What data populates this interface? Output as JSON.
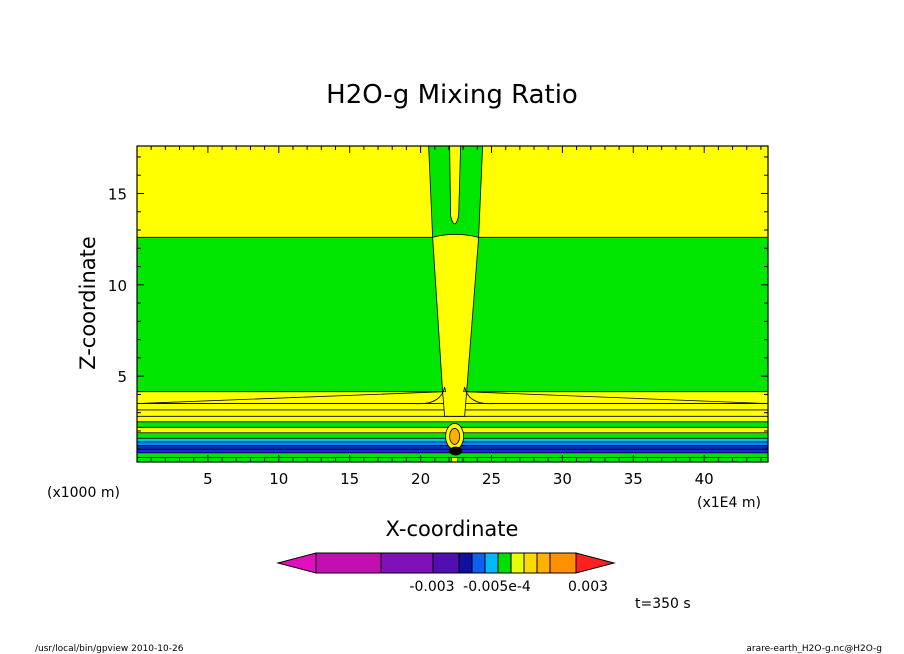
{
  "chart_data": {
    "type": "heatmap",
    "title": "H2O-g Mixing Ratio",
    "xlabel": "X-coordinate",
    "ylabel": "Z-coordinate",
    "x_unit_note": "(x1E4 m)",
    "y_unit_note": "(x1000 m)",
    "xlim": [
      0,
      44.5
    ],
    "ylim": [
      0.3,
      17.6
    ],
    "x_ticks": [
      "5",
      "10",
      "15",
      "20",
      "25",
      "30",
      "35",
      "40"
    ],
    "x_tick_values": [
      5,
      10,
      15,
      20,
      25,
      30,
      35,
      40
    ],
    "y_ticks": [
      "5",
      "10",
      "15"
    ],
    "y_tick_values": [
      5,
      10,
      15
    ],
    "plume_center_x": 22.4,
    "upper_band_bottom_z": 12.6,
    "layers": [
      {
        "z0": 0.3,
        "z1": 0.55,
        "color": "#00e600"
      },
      {
        "z0": 0.55,
        "z1": 0.8,
        "color": "#00e600"
      },
      {
        "z0": 0.8,
        "z1": 1.0,
        "color": "#2222ee"
      },
      {
        "z0": 1.0,
        "z1": 1.2,
        "color": "#0033aa"
      },
      {
        "z0": 1.2,
        "z1": 1.4,
        "color": "#0088ff"
      },
      {
        "z0": 1.4,
        "z1": 1.6,
        "color": "#00cccc"
      },
      {
        "z0": 1.6,
        "z1": 1.9,
        "color": "#00e600"
      },
      {
        "z0": 1.9,
        "z1": 2.2,
        "color": "#ffff00"
      },
      {
        "z0": 2.2,
        "z1": 2.5,
        "color": "#00e600"
      },
      {
        "z0": 2.5,
        "z1": 2.8,
        "color": "#ffff00"
      },
      {
        "z0": 2.8,
        "z1": 3.15,
        "color": "#ffff00"
      },
      {
        "z0": 3.15,
        "z1": 3.5,
        "color": "#ffff00"
      },
      {
        "z0": 3.5,
        "z1": 4.15,
        "color": "#ffff00"
      },
      {
        "z0": 4.15,
        "z1": 12.6,
        "color": "#00e600"
      },
      {
        "z0": 12.6,
        "z1": 17.6,
        "color": "#ffff00"
      }
    ],
    "colorbar": {
      "colors": [
        "#e010c0",
        "#c010b0",
        "#8010b8",
        "#5010b0",
        "#1010a0",
        "#1060f0",
        "#00b8f8",
        "#00e000",
        "#e8ff00",
        "#ffd800",
        "#ffb000",
        "#ff9000",
        "#ff2020"
      ],
      "labels": [
        "-0.003",
        "-0.005e-4",
        "0.003"
      ]
    },
    "annotation_time": "t=350 s",
    "footer_left": "/usr/local/bin/gpview  2010-10-26",
    "footer_right": "arare-earth_H2O-g.nc@H2O-g"
  }
}
